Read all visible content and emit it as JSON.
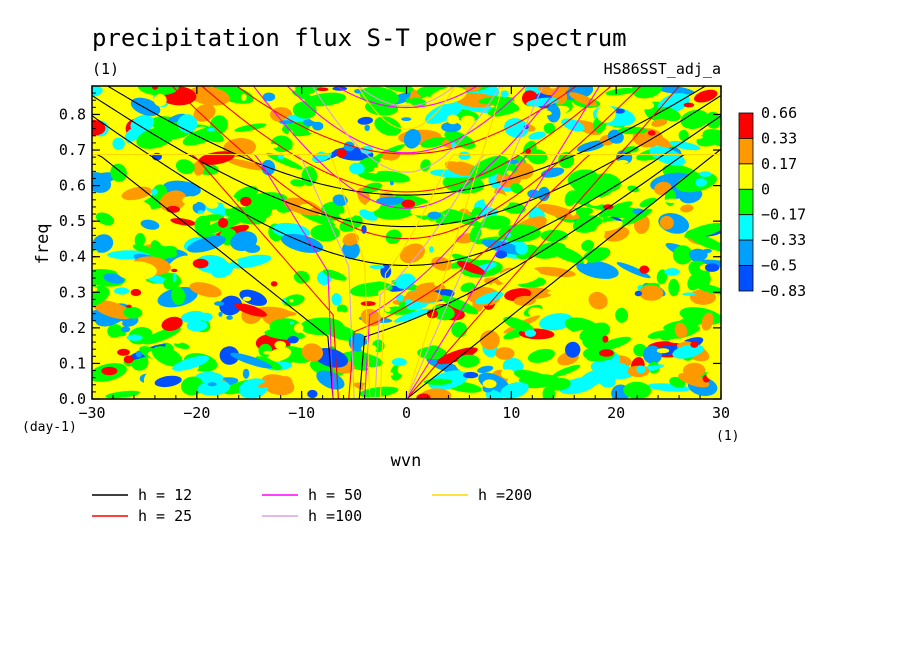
{
  "chart_data": {
    "type": "heatmap",
    "title": "precipitation flux S-T power spectrum",
    "subtitle": "(1)",
    "case_label": "HS86SST_adj_a",
    "xlabel": "wvn",
    "ylabel": "freq",
    "x_unit": "(1)",
    "y_unit": "(day-1)",
    "xlim": [
      -30,
      30
    ],
    "ylim": [
      0,
      0.88
    ],
    "x_ticks": [
      "−30",
      "−20",
      "−10",
      "0",
      "10",
      "20",
      "30"
    ],
    "y_ticks": [
      "0.0",
      "0.1",
      "0.2",
      "0.3",
      "0.4",
      "0.5",
      "0.6",
      "0.7",
      "0.8"
    ],
    "colorbar": {
      "levels": [
        "0.66",
        "0.33",
        "0.17",
        "0",
        "−0.17",
        "−0.33",
        "−0.5",
        "−0.83"
      ],
      "colors": [
        "#ff0000",
        "#ff9900",
        "#ffff00",
        "#00ff00",
        "#00ffff",
        "#00a0ff",
        "#0050ff"
      ]
    },
    "dispersion_curves": [
      {
        "label": "h = 12",
        "color": "#000000"
      },
      {
        "label": "h = 25",
        "color": "#ff0000"
      },
      {
        "label": "h = 50",
        "color": "#ff00ff"
      },
      {
        "label": "h =100",
        "color": "#dda0dd"
      },
      {
        "label": "h =200",
        "color": "#ffd700"
      }
    ]
  }
}
